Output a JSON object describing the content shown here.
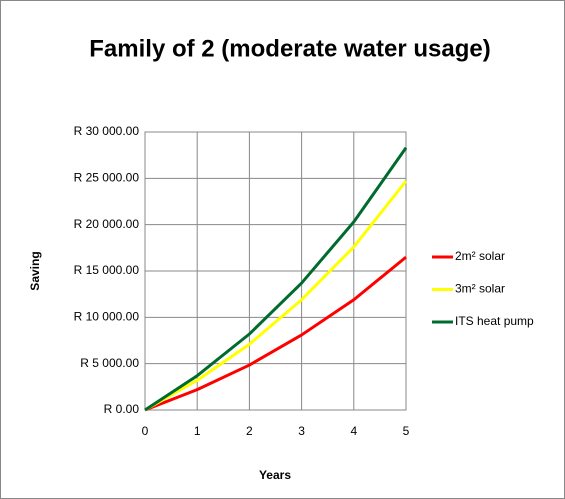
{
  "chart_data": {
    "type": "line",
    "title": "Family of 2 (moderate water usage)",
    "xlabel": "Years",
    "ylabel": "Saving",
    "x": [
      0,
      1,
      2,
      3,
      4,
      5
    ],
    "series": [
      {
        "name": "2m² solar",
        "color": "#ff0000",
        "values": [
          0,
          2200,
          4850,
          8100,
          11900,
          16500
        ]
      },
      {
        "name": "3m² solar",
        "color": "#ffff00",
        "values": [
          0,
          3200,
          7100,
          11900,
          17600,
          24700
        ]
      },
      {
        "name": "ITS heat pump",
        "color": "#006b2e",
        "values": [
          0,
          3700,
          8200,
          13700,
          20300,
          28300
        ]
      }
    ],
    "xlim": [
      0,
      5
    ],
    "xticks": [
      0,
      1,
      2,
      3,
      4,
      5
    ],
    "ylim": [
      0,
      30000
    ],
    "yticks": [
      {
        "value": 0,
        "label": "R 0.00"
      },
      {
        "value": 5000,
        "label": "R 5 000.00"
      },
      {
        "value": 10000,
        "label": "R 10 000.00"
      },
      {
        "value": 15000,
        "label": "R 15 000.00"
      },
      {
        "value": 20000,
        "label": "R 20 000.00"
      },
      {
        "value": 25000,
        "label": "R 25 000.00"
      },
      {
        "value": 30000,
        "label": "R 30 000.00"
      }
    ],
    "grid": true,
    "legend": "right"
  }
}
